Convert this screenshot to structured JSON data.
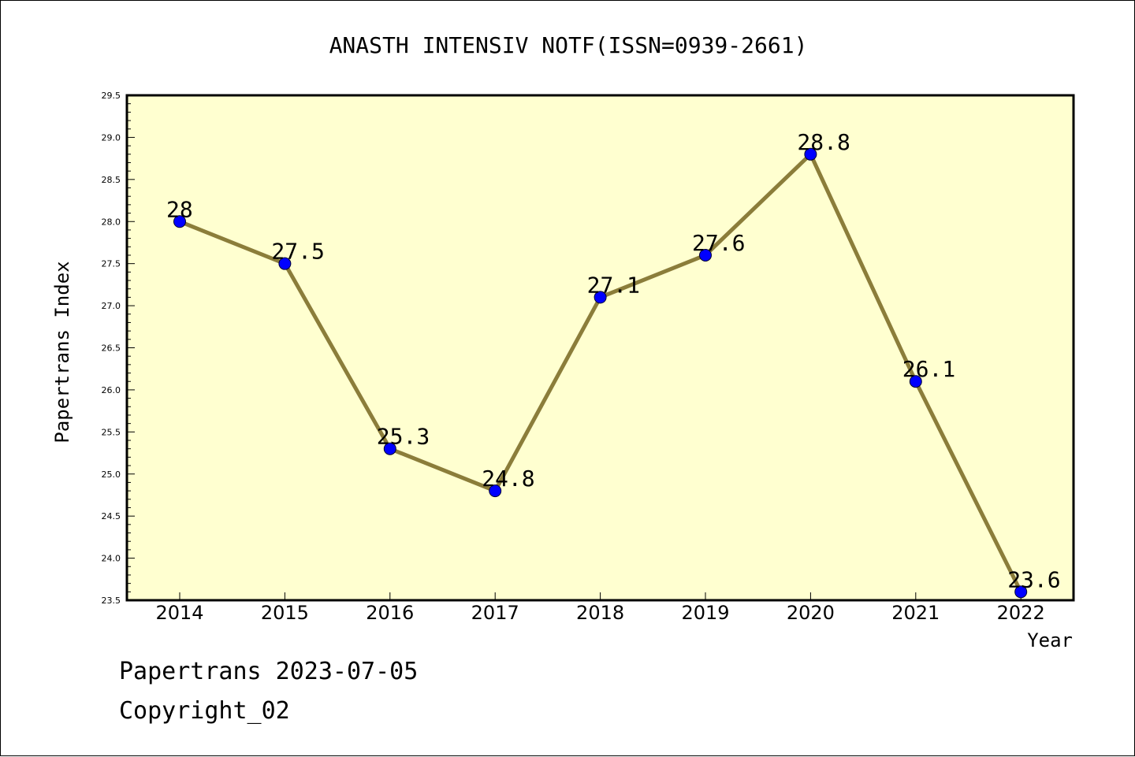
{
  "chart_data": {
    "type": "line",
    "title": "ANASTH INTENSIV NOTF(ISSN=0939-2661)",
    "xlabel": "Year",
    "ylabel": "Papertrans Index",
    "categories": [
      "2014",
      "2015",
      "2016",
      "2017",
      "2018",
      "2019",
      "2020",
      "2021",
      "2022"
    ],
    "values": [
      28,
      27.5,
      25.3,
      24.8,
      27.1,
      27.6,
      28.8,
      26.1,
      23.6
    ],
    "data_labels": [
      "28",
      "27.5",
      "25.3",
      "24.8",
      "27.1",
      "27.6",
      "28.8",
      "26.1",
      "23.6"
    ],
    "ylim": [
      23.5,
      29.5
    ],
    "yticks": [
      "23.5",
      "24.0",
      "24.5",
      "25.0",
      "25.5",
      "26.0",
      "26.5",
      "27.0",
      "27.5",
      "28.0",
      "28.5",
      "29.0",
      "29.5"
    ],
    "grid": false,
    "legend": "none",
    "colors": {
      "plot_background": "#ffffd0",
      "line": "#8b7d3a",
      "marker": "#0000ff"
    }
  },
  "footer": {
    "date_line": "Papertrans 2023-07-05",
    "copyright": "Copyright_02"
  }
}
